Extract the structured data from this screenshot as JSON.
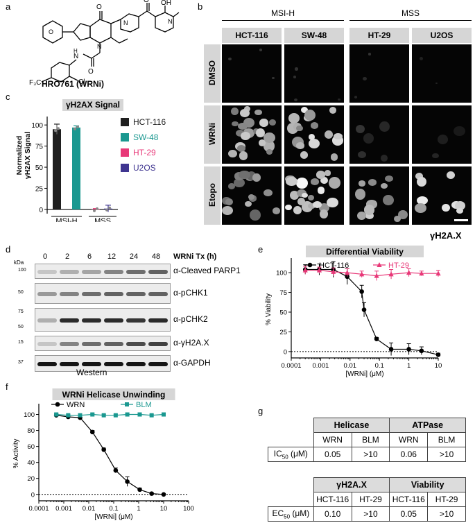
{
  "panels": {
    "a": "a",
    "b": "b",
    "c": "c",
    "d": "d",
    "e": "e",
    "f": "f",
    "g": "g"
  },
  "panel_a": {
    "compound_label": "HRO761 (WRNi)"
  },
  "panel_b": {
    "groups": [
      "MSI-H",
      "MSS"
    ],
    "cell_lines": [
      "HCT-116",
      "SW-48",
      "HT-29",
      "U2OS"
    ],
    "treatments": [
      "DMSO",
      "WRNi",
      "Etopo"
    ],
    "stain_label": "γH2A.X"
  },
  "panel_c": {
    "title": "γH2AX Signal",
    "ylabel": [
      "Normalized",
      "γH2AX Signal"
    ],
    "groups": [
      "MSI-H",
      "MSS"
    ],
    "legend": [
      {
        "name": "HCT-116",
        "color": "#1f1f1f"
      },
      {
        "name": "SW-48",
        "color": "#1a9890"
      },
      {
        "name": "HT-29",
        "color": "#e83878"
      },
      {
        "name": "U2OS",
        "color": "#3f3590"
      }
    ]
  },
  "panel_d": {
    "kda_label": "kDa",
    "tx_label": "WRNi Tx (h)",
    "timepoints": [
      "0",
      "2",
      "6",
      "12",
      "24",
      "48"
    ],
    "blots": [
      {
        "name": "α-Cleaved PARP1",
        "markers": [
          "100"
        ]
      },
      {
        "name": "α-pCHK1",
        "markers": [
          "50"
        ]
      },
      {
        "name": "α-pCHK2",
        "markers": [
          "75",
          "50"
        ]
      },
      {
        "name": "α-γH2A.X",
        "markers": [
          "15"
        ]
      },
      {
        "name": "α-GAPDH",
        "markers": [
          "37"
        ]
      }
    ],
    "method": "Western"
  },
  "panel_g": {
    "table1": {
      "headers": [
        "Helicase",
        "ATPase"
      ],
      "subheaders": [
        "WRN",
        "BLM",
        "WRN",
        "BLM"
      ],
      "row_label_prefix": "IC",
      "row_label_sub": "50",
      "row_label_unit": " (μM)",
      "values": [
        "0.05",
        ">10",
        "0.06",
        ">10"
      ]
    },
    "table2": {
      "headers": [
        "γH2A.X",
        "Viability"
      ],
      "subheaders": [
        "HCT-116",
        "HT-29",
        "HCT-116",
        "HT-29"
      ],
      "row_label_prefix": "EC",
      "row_label_sub": "50",
      "row_label_unit": " (μM)",
      "values": [
        "0.10",
        ">10",
        "0.05",
        ">10"
      ]
    }
  },
  "chart_data": [
    {
      "panel": "c",
      "type": "bar",
      "title": "γH2AX Signal",
      "ylabel": "Normalized γH2AX Signal",
      "ylim": [
        -5,
        110
      ],
      "yticks": [
        0,
        25,
        50,
        75,
        100
      ],
      "categories": [
        "MSI-H",
        "MSS"
      ],
      "series": [
        {
          "name": "HCT-116",
          "group": "MSI-H",
          "value": 95,
          "err": 6,
          "color": "#1f1f1f"
        },
        {
          "name": "SW-48",
          "group": "MSI-H",
          "value": 97,
          "err": 2,
          "color": "#1a9890"
        },
        {
          "name": "HT-29",
          "group": "MSS",
          "value": 0,
          "err": 1,
          "color": "#e83878"
        },
        {
          "name": "U2OS",
          "group": "MSS",
          "value": 1,
          "err": 4,
          "color": "#3f3590"
        }
      ]
    },
    {
      "panel": "e",
      "type": "line",
      "title": "Differential Viability",
      "ylabel": "% Viability",
      "xlabel": "[WRNi] (μM)",
      "xscale": "log",
      "xlim": [
        0.0001,
        10
      ],
      "ylim": [
        -8,
        115
      ],
      "xticks": [
        "0.0001",
        "0.001",
        "0.01",
        "0.1",
        "1",
        "10"
      ],
      "yticks": [
        0,
        25,
        50,
        75,
        100
      ],
      "series": [
        {
          "name": "HCT-116",
          "color": "#000000",
          "marker": "circle",
          "x": [
            0.0003,
            0.0009,
            0.0027,
            0.008,
            0.025,
            0.03,
            0.08,
            0.25,
            1,
            2.7,
            10
          ],
          "y": [
            104,
            104,
            104,
            95,
            76,
            53,
            16,
            3,
            3,
            1,
            -4
          ],
          "err": [
            6,
            7,
            10,
            10,
            8,
            9,
            2,
            8,
            7,
            5,
            2
          ]
        },
        {
          "name": "HT-29",
          "color": "#e83878",
          "marker": "triangle",
          "x": [
            0.0003,
            0.0009,
            0.0027,
            0.008,
            0.025,
            0.08,
            0.25,
            1,
            2.7,
            10
          ],
          "y": [
            103,
            103,
            101,
            100,
            98,
            96,
            98,
            100,
            99,
            99
          ],
          "err": [
            5,
            4,
            5,
            5,
            4,
            6,
            6,
            5,
            3,
            4
          ]
        }
      ]
    },
    {
      "panel": "f",
      "type": "line",
      "title": "WRNi Helicase Unwinding",
      "ylabel": "% Activity",
      "xlabel": "[WRNi] (μM)",
      "xscale": "log",
      "xlim": [
        0.0001,
        100
      ],
      "ylim": [
        -8,
        110
      ],
      "xticks": [
        "0.0001",
        "0.001",
        "0.01",
        "0.1",
        "1",
        "10",
        "100"
      ],
      "yticks": [
        0,
        20,
        40,
        60,
        80,
        100
      ],
      "series": [
        {
          "name": "WRN",
          "color": "#000000",
          "marker": "circle",
          "x": [
            0.0005,
            0.0015,
            0.0045,
            0.014,
            0.04,
            0.12,
            0.35,
            1.1,
            3.3,
            10
          ],
          "y": [
            99,
            97,
            96,
            78,
            56,
            30,
            16,
            6,
            1,
            0
          ],
          "err": [
            2,
            2,
            3,
            2,
            2,
            3,
            6,
            2,
            1,
            1
          ]
        },
        {
          "name": "BLM",
          "color": "#1a9890",
          "marker": "square",
          "x": [
            0.0005,
            0.0015,
            0.0045,
            0.014,
            0.04,
            0.12,
            0.35,
            1.1,
            3.3,
            10
          ],
          "y": [
            100,
            99,
            99,
            100,
            99,
            99,
            100,
            100,
            99,
            100
          ],
          "err": [
            1,
            1,
            1,
            1,
            1,
            1,
            1,
            1,
            1,
            1
          ]
        }
      ]
    }
  ]
}
